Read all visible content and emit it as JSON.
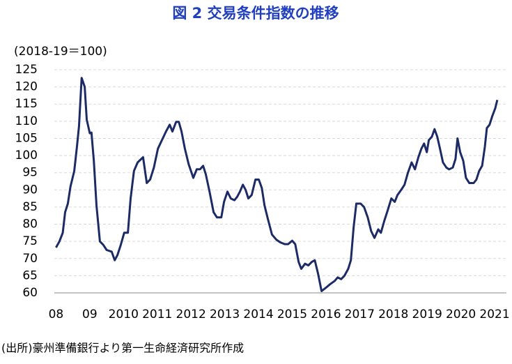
{
  "chart_data": {
    "type": "line",
    "title": "図 2  交易条件指数の推移",
    "y_axis_label": "(2018-19＝100)",
    "source": "(出所)豪州準備銀行より第一生命経済研究所作成",
    "color": "#1c2a66",
    "grid": true,
    "x": [
      2008.0,
      2008.1,
      2008.2,
      2008.27,
      2008.35,
      2008.43,
      2008.54,
      2008.62,
      2008.68,
      2008.76,
      2008.85,
      2008.91,
      2009.0,
      2009.05,
      2009.12,
      2009.2,
      2009.3,
      2009.4,
      2009.5,
      2009.65,
      2009.74,
      2009.82,
      2009.92,
      2010.02,
      2010.13,
      2010.21,
      2010.31,
      2010.42,
      2010.58,
      2010.69,
      2010.79,
      2010.9,
      2011.02,
      2011.14,
      2011.26,
      2011.37,
      2011.45,
      2011.56,
      2011.64,
      2011.72,
      2011.82,
      2011.93,
      2012.07,
      2012.17,
      2012.27,
      2012.36,
      2012.44,
      2012.55,
      2012.67,
      2012.77,
      2012.9,
      2012.98,
      2013.08,
      2013.18,
      2013.29,
      2013.37,
      2013.45,
      2013.54,
      2013.62,
      2013.7,
      2013.8,
      2013.91,
      2014.01,
      2014.1,
      2014.18,
      2014.28,
      2014.4,
      2014.53,
      2014.65,
      2014.78,
      2014.88,
      2015.0,
      2015.09,
      2015.19,
      2015.27,
      2015.38,
      2015.48,
      2015.58,
      2015.67,
      2015.77,
      2015.87,
      2016.0,
      2016.12,
      2016.26,
      2016.35,
      2016.45,
      2016.55,
      2016.66,
      2016.74,
      2016.82,
      2016.9,
      2017.03,
      2017.13,
      2017.24,
      2017.34,
      2017.44,
      2017.55,
      2017.63,
      2017.73,
      2017.83,
      2017.94,
      2018.04,
      2018.12,
      2018.23,
      2018.33,
      2018.43,
      2018.54,
      2018.64,
      2018.74,
      2018.83,
      2018.91,
      2018.99,
      2019.05,
      2019.14,
      2019.22,
      2019.3,
      2019.38,
      2019.47,
      2019.57,
      2019.65,
      2019.76,
      2019.84,
      2019.9,
      2019.98,
      2020.07,
      2020.15,
      2020.25,
      2020.38,
      2020.46,
      2020.54,
      2020.63,
      2020.71,
      2020.77,
      2020.85,
      2020.93,
      2021.02,
      2021.08
    ],
    "values": [
      73.2,
      75,
      77.5,
      83.5,
      86,
      91,
      95.5,
      102.5,
      108.5,
      122.6,
      120,
      110.5,
      106.5,
      106.7,
      98.5,
      85.5,
      75,
      74,
      72.5,
      72,
      69.5,
      71,
      74,
      77.5,
      77.5,
      87.5,
      95.5,
      98,
      99.5,
      92,
      93,
      96.5,
      102,
      104.5,
      107,
      109,
      107,
      109.8,
      109.8,
      107,
      102,
      97.5,
      93.5,
      96,
      96,
      97,
      94.5,
      89.5,
      83.5,
      82,
      82,
      86.5,
      89.5,
      87.5,
      87,
      88,
      89.5,
      91.5,
      90,
      87.5,
      88.5,
      93,
      93,
      90.5,
      85.5,
      81.5,
      77,
      75.5,
      74.7,
      74.2,
      74.2,
      75.2,
      74.2,
      69,
      67,
      68.5,
      68,
      69,
      69.5,
      65.5,
      60.5,
      61.5,
      62.5,
      63.5,
      64.5,
      64,
      65,
      67,
      69.5,
      79,
      86,
      86,
      85,
      82,
      78,
      76,
      78.5,
      77.5,
      81,
      84,
      87.5,
      86.5,
      88.5,
      90,
      91.5,
      95,
      98,
      96,
      99.5,
      102,
      103.5,
      101,
      104.5,
      105.5,
      107.7,
      105.5,
      102,
      98,
      96.5,
      96,
      96.5,
      99,
      105,
      101,
      98.5,
      93.5,
      92,
      92,
      93,
      95.5,
      97,
      102.5,
      108,
      109,
      111.5,
      113.8,
      116.2
    ],
    "xlim": [
      2007.95,
      2021.35
    ],
    "xticks": [
      {
        "value": 2008,
        "label": "08"
      },
      {
        "value": 2009,
        "label": "09"
      },
      2010,
      2011,
      2012,
      2013,
      2014,
      2015,
      2016,
      2017,
      2018,
      2019,
      2020,
      2021
    ],
    "ylim": [
      60,
      125
    ],
    "yticks": [
      60,
      65,
      70,
      75,
      80,
      85,
      90,
      95,
      100,
      105,
      110,
      115,
      120,
      125
    ]
  }
}
